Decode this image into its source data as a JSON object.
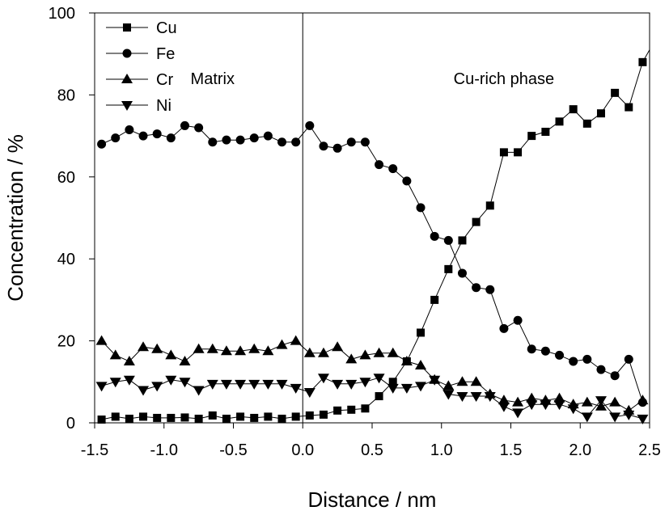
{
  "chart_data": {
    "type": "line",
    "xlabel": "Distance / nm",
    "ylabel": "Concentration / %",
    "xlim": [
      -1.5,
      2.5
    ],
    "ylim": [
      0,
      100
    ],
    "xticks": [
      -1.5,
      -1.0,
      -0.5,
      0.0,
      0.5,
      1.0,
      1.5,
      2.0,
      2.5
    ],
    "xtick_labels": [
      "-1.5",
      "-1.0",
      "-0.5",
      "0.0",
      "0.5",
      "1.0",
      "1.5",
      "2.0",
      "2.5"
    ],
    "yticks": [
      0,
      20,
      40,
      60,
      80,
      100
    ],
    "ytick_labels": [
      "0",
      "20",
      "40",
      "60",
      "80",
      "100"
    ],
    "grid": false,
    "legend_position": "top-left",
    "reference_line_x": 0.0,
    "annotations": [
      {
        "text": "Matrix",
        "x": -0.65,
        "y": 84
      },
      {
        "text": "Cu-rich phase",
        "x": 1.45,
        "y": 84
      }
    ],
    "x": [
      -1.45,
      -1.35,
      -1.25,
      -1.15,
      -1.05,
      -0.95,
      -0.85,
      -0.75,
      -0.65,
      -0.55,
      -0.45,
      -0.35,
      -0.25,
      -0.15,
      -0.05,
      0.05,
      0.15,
      0.25,
      0.35,
      0.45,
      0.55,
      0.65,
      0.75,
      0.85,
      0.95,
      1.05,
      1.15,
      1.25,
      1.35,
      1.45,
      1.55,
      1.65,
      1.75,
      1.85,
      1.95,
      2.05,
      2.15,
      2.25,
      2.35,
      2.45
    ],
    "series": [
      {
        "name": "Cu",
        "marker": "square",
        "values": [
          0.8,
          1.5,
          1.0,
          1.5,
          1.2,
          1.2,
          1.3,
          1.0,
          1.8,
          1.0,
          1.5,
          1.2,
          1.5,
          1.0,
          1.5,
          1.8,
          2.0,
          3.0,
          3.2,
          3.5,
          6.5,
          10.0,
          15.0,
          22.0,
          30.0,
          37.5,
          44.5,
          49.0,
          53.0,
          66.0,
          66.0,
          70.0,
          71.0,
          73.5,
          76.5,
          73.0,
          75.5,
          80.5,
          77.0,
          88.0
        ],
        "line_end": [
          2.5,
          91.0
        ]
      },
      {
        "name": "Fe",
        "marker": "circle",
        "values": [
          68.0,
          69.5,
          71.5,
          70.0,
          70.5,
          69.5,
          72.5,
          72.0,
          68.5,
          69.0,
          69.0,
          69.5,
          70.0,
          68.5,
          68.5,
          72.5,
          67.5,
          67.0,
          68.5,
          68.5,
          63.0,
          62.0,
          59.0,
          52.5,
          45.5,
          44.5,
          36.5,
          33.0,
          32.5,
          23.0,
          25.0,
          18.0,
          17.5,
          16.5,
          15.0,
          15.5,
          13.0,
          11.5,
          15.5,
          5.0
        ]
      },
      {
        "name": "Cr",
        "marker": "triangle-up",
        "values": [
          20.0,
          16.5,
          15.0,
          18.5,
          18.0,
          16.5,
          15.0,
          18.0,
          18.0,
          17.5,
          17.5,
          18.0,
          17.5,
          19.0,
          20.0,
          17.0,
          17.0,
          18.5,
          15.5,
          16.5,
          17.0,
          17.0,
          15.0,
          14.0,
          10.5,
          9.0,
          10.0,
          10.0,
          7.0,
          5.5,
          5.0,
          6.0,
          5.5,
          6.0,
          4.5,
          5.0,
          4.0,
          5.0,
          3.0,
          5.5
        ]
      },
      {
        "name": "Ni",
        "marker": "triangle-down",
        "values": [
          9.0,
          10.0,
          10.5,
          8.0,
          9.0,
          10.5,
          10.0,
          8.0,
          9.5,
          9.5,
          9.5,
          9.5,
          9.5,
          9.5,
          8.5,
          7.5,
          11.0,
          9.5,
          9.5,
          10.0,
          11.0,
          8.5,
          8.5,
          9.0,
          10.5,
          7.0,
          6.5,
          6.5,
          6.5,
          4.0,
          2.5,
          4.5,
          4.5,
          4.5,
          3.5,
          1.5,
          5.5,
          1.5,
          2.0,
          1.0
        ]
      }
    ]
  }
}
